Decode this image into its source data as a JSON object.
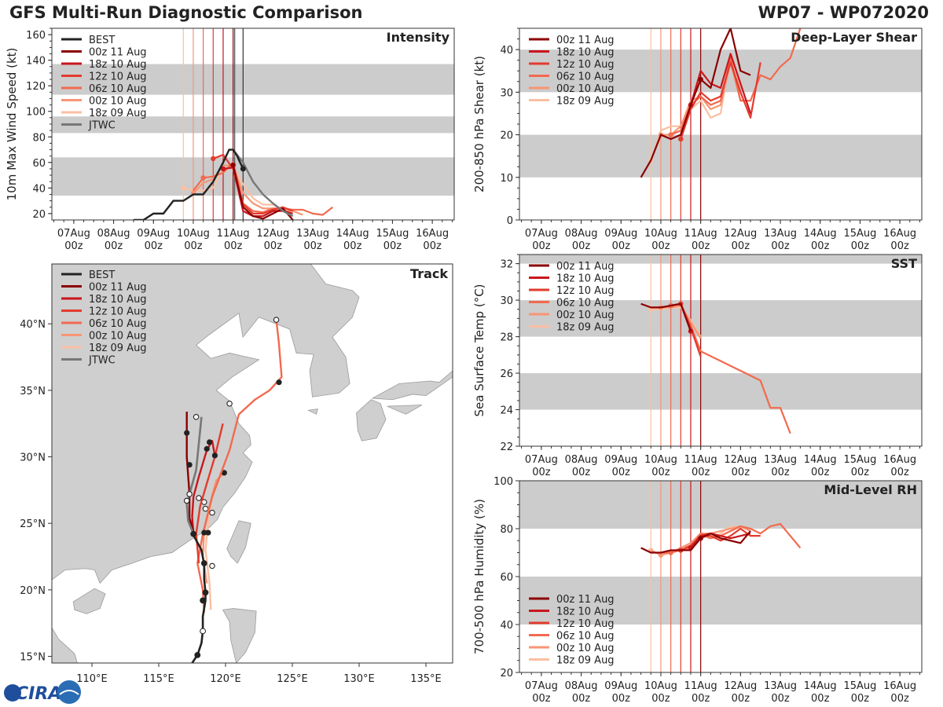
{
  "header": {
    "title": "GFS Multi-Run Diagnostic Comparison",
    "storm_id": "WP07 - WP072020"
  },
  "logo": {
    "text": "CIRA"
  },
  "colors": {
    "best": "#222222",
    "jtwc": "#777777",
    "band": "#cccccc",
    "runs": [
      "#8b0000",
      "#c8161d",
      "#e33b2e",
      "#f26a4f",
      "#f79574",
      "#fbbfa2"
    ]
  },
  "time_axis": {
    "ticks": [
      {
        "label": "07Aug",
        "sub": "00z"
      },
      {
        "label": "08Aug",
        "sub": "00z"
      },
      {
        "label": "09Aug",
        "sub": "00z"
      },
      {
        "label": "10Aug",
        "sub": "00z"
      },
      {
        "label": "11Aug",
        "sub": "00z"
      },
      {
        "label": "12Aug",
        "sub": "00z"
      },
      {
        "label": "13Aug",
        "sub": "00z"
      },
      {
        "label": "14Aug",
        "sub": "00z"
      },
      {
        "label": "15Aug",
        "sub": "00z"
      },
      {
        "label": "16Aug",
        "sub": "00z"
      }
    ]
  },
  "run_legend": [
    "00z 11 Aug",
    "18z 10 Aug",
    "12z 10 Aug",
    "06z 10 Aug",
    "00z 10 Aug",
    "18z 09 Aug"
  ],
  "best_label": "BEST",
  "jtwc_label": "JTWC",
  "chart_data": [
    {
      "id": "intensity",
      "type": "line",
      "title": "Intensity",
      "ylabel": "10m Max Wind Speed (kt)",
      "xlabel": "",
      "x_unit": "days since 07Aug 00z",
      "xlim": [
        -0.55,
        9.55
      ],
      "ylim": [
        15,
        165
      ],
      "yticks": [
        20,
        40,
        60,
        80,
        100,
        120,
        140,
        160
      ],
      "bands": [
        [
          34,
          64
        ],
        [
          83,
          96
        ],
        [
          113,
          137
        ]
      ],
      "run_inits": [
        4.0,
        3.75,
        3.5,
        3.25,
        3.0,
        2.75
      ],
      "best": {
        "name": "BEST",
        "x": [
          1.5,
          1.75,
          2.0,
          2.25,
          2.5,
          2.75,
          3.0,
          3.25,
          3.5,
          3.75,
          3.9,
          4.0,
          4.1,
          4.25
        ],
        "y": [
          15,
          15,
          20,
          20,
          30,
          30,
          35,
          35,
          45,
          60,
          70,
          70,
          65,
          55
        ],
        "markers": [
          4.25
        ]
      },
      "jtwc": {
        "name": "JTWC",
        "x": [
          4.0,
          4.25,
          4.5,
          4.75,
          5.0,
          5.25,
          5.5
        ],
        "y": [
          70,
          60,
          45,
          35,
          28,
          22,
          18
        ]
      },
      "series": [
        {
          "name": "00z 11 Aug",
          "x": [
            4.0,
            4.25,
            4.5,
            4.75,
            5.0,
            5.25,
            5.5
          ],
          "y": [
            58,
            25,
            18,
            16,
            20,
            24,
            15
          ]
        },
        {
          "name": "18z 10 Aug",
          "x": [
            3.75,
            4.0,
            4.25,
            4.5,
            4.75,
            5.0,
            5.25,
            5.5
          ],
          "y": [
            55,
            56,
            22,
            18,
            18,
            22,
            22,
            20
          ]
        },
        {
          "name": "12z 10 Aug",
          "x": [
            3.5,
            3.75,
            4.0,
            4.25,
            4.5,
            4.75,
            5.0,
            5.25,
            5.5
          ],
          "y": [
            63,
            66,
            55,
            27,
            20,
            20,
            23,
            25,
            22
          ]
        },
        {
          "name": "06z 10 Aug",
          "x": [
            3.0,
            3.25,
            3.5,
            3.75,
            4.0,
            4.25,
            4.5,
            4.75,
            5.0,
            5.25,
            5.5,
            5.75,
            6.0,
            6.25,
            6.5
          ],
          "y": [
            38,
            48,
            49,
            52,
            60,
            28,
            22,
            21,
            24,
            24,
            23,
            23,
            20,
            19,
            25
          ]
        },
        {
          "name": "00z 10 Aug",
          "x": [
            3.0,
            3.25,
            3.5,
            3.75,
            4.0,
            4.25,
            4.5,
            4.75,
            5.0,
            5.25,
            5.5,
            5.75
          ],
          "y": [
            36,
            44,
            47,
            58,
            57,
            36,
            28,
            24,
            24,
            22,
            22,
            19
          ]
        },
        {
          "name": "18z 09 Aug",
          "x": [
            2.75,
            3.0,
            3.25,
            3.5,
            3.75,
            4.0,
            4.25,
            4.5,
            4.75,
            5.0,
            5.25
          ],
          "y": [
            40,
            38,
            38,
            40,
            55,
            56,
            43,
            32,
            27,
            27,
            23
          ]
        }
      ],
      "annotations": [
        {
          "name": "early-marker",
          "x": 2.5,
          "y": 37
        }
      ]
    },
    {
      "id": "shear",
      "type": "line",
      "title": "Deep-Layer Shear",
      "ylabel": "200-850 hPa Shear (kt)",
      "xlabel": "",
      "xlim": [
        -0.55,
        9.55
      ],
      "ylim": [
        0,
        45
      ],
      "yticks": [
        0,
        10,
        20,
        30,
        40
      ],
      "bands": [
        [
          10,
          20
        ],
        [
          30,
          40
        ]
      ],
      "run_inits": [
        4.0,
        3.75,
        3.5,
        3.25,
        3.0,
        2.75
      ],
      "series": [
        {
          "name": "00z 11 Aug",
          "x": [
            2.5,
            2.75,
            3.0,
            3.25,
            3.5,
            3.75,
            4.0,
            4.25,
            4.5,
            4.75,
            5.0,
            5.25
          ],
          "y": [
            10,
            14,
            20,
            19,
            20,
            27,
            33,
            31,
            40,
            45,
            35,
            34
          ]
        },
        {
          "name": "18z 10 Aug",
          "x": [
            3.75,
            4.0,
            4.25,
            4.5,
            4.75,
            5.0,
            5.25
          ],
          "y": [
            27,
            35,
            32,
            31,
            39,
            32,
            25
          ]
        },
        {
          "name": "12z 10 Aug",
          "x": [
            3.5,
            3.75,
            4.0,
            4.25,
            4.5,
            4.75,
            5.0,
            5.25,
            5.5
          ],
          "y": [
            19,
            26,
            30,
            28,
            29,
            37,
            30,
            24,
            37
          ]
        },
        {
          "name": "06z 10 Aug",
          "x": [
            3.25,
            3.5,
            3.75,
            4.0,
            4.25,
            4.5,
            4.75,
            5.0,
            5.25,
            5.5,
            5.75,
            6.0,
            6.25,
            6.5
          ],
          "y": [
            20,
            21,
            27,
            29,
            27,
            28,
            38,
            28,
            28,
            34,
            33,
            36,
            38,
            45
          ]
        },
        {
          "name": "00z 10 Aug",
          "x": [
            3.0,
            3.25,
            3.5,
            3.75,
            4.0,
            4.25,
            4.5,
            4.75,
            5.0,
            5.25
          ],
          "y": [
            20,
            20,
            22,
            28,
            29,
            26,
            27,
            37,
            28,
            28
          ]
        },
        {
          "name": "18z 09 Aug",
          "x": [
            2.75,
            3.0,
            3.25,
            3.5,
            3.75,
            4.0,
            4.25,
            4.5,
            4.75,
            5.0
          ],
          "y": [
            14,
            21,
            22,
            22,
            26,
            28,
            24,
            25,
            39,
            31
          ]
        }
      ]
    },
    {
      "id": "sst",
      "type": "line",
      "title": "SST",
      "ylabel": "Sea Surface Temp (°C)",
      "xlabel": "",
      "xlim": [
        -0.55,
        9.55
      ],
      "ylim": [
        22,
        32.5
      ],
      "yticks": [
        22,
        24,
        26,
        28,
        30,
        32
      ],
      "bands": [
        [
          24,
          26
        ],
        [
          28,
          30
        ],
        [
          32,
          32.5
        ]
      ],
      "run_inits": [
        4.0,
        3.75,
        3.5,
        3.25,
        3.0,
        2.75
      ],
      "series": [
        {
          "name": "00z 11 Aug",
          "x": [
            2.5,
            2.75,
            3.0,
            3.25,
            3.5,
            3.75
          ],
          "y": [
            29.8,
            29.6,
            29.6,
            29.7,
            29.8,
            28.3
          ]
        },
        {
          "name": "18z 10 Aug",
          "x": [
            3.5,
            3.75
          ],
          "y": [
            29.8,
            28.3
          ]
        },
        {
          "name": "12z 10 Aug",
          "x": [
            3.25,
            3.5,
            3.75,
            4.0
          ],
          "y": [
            29.7,
            29.8,
            28.5,
            26.9
          ]
        },
        {
          "name": "06z 10 Aug",
          "x": [
            3.0,
            3.25,
            3.5,
            3.75,
            4.0,
            5.5,
            5.75,
            6.0,
            6.25
          ],
          "y": [
            29.6,
            29.7,
            29.8,
            28.6,
            27.2,
            25.6,
            24.1,
            24.1,
            22.7
          ]
        },
        {
          "name": "00z 10 Aug",
          "x": [
            2.75,
            3.0,
            3.25,
            3.5,
            3.75,
            4.0
          ],
          "y": [
            29.6,
            29.6,
            29.6,
            29.7,
            28.8,
            27.9
          ]
        },
        {
          "name": "18z 09 Aug",
          "x": [
            2.75,
            3.0,
            3.25,
            3.5,
            3.75,
            4.0
          ],
          "y": [
            29.5,
            29.5,
            29.6,
            29.6,
            28.9,
            28.0
          ]
        }
      ]
    },
    {
      "id": "rh",
      "type": "line",
      "title": "Mid-Level RH",
      "ylabel": "700-500 hPa Humidity (%)",
      "xlabel": "",
      "xlim": [
        -0.55,
        9.55
      ],
      "ylim": [
        20,
        100
      ],
      "yticks": [
        20,
        40,
        60,
        80,
        100
      ],
      "bands": [
        [
          40,
          60
        ],
        [
          80,
          100
        ]
      ],
      "run_inits": [
        4.0,
        3.75,
        3.5,
        3.25,
        3.0,
        2.75
      ],
      "series": [
        {
          "name": "00z 11 Aug",
          "x": [
            2.5,
            2.75,
            3.0,
            3.25,
            3.5,
            3.75,
            4.0,
            4.25,
            4.5,
            4.75,
            5.0,
            5.25
          ],
          "y": [
            72,
            70,
            70,
            71,
            71,
            71,
            76,
            78,
            76,
            75,
            74,
            79
          ]
        },
        {
          "name": "18z 10 Aug",
          "x": [
            3.75,
            4.0,
            4.25,
            4.5,
            4.75,
            5.0,
            5.25
          ],
          "y": [
            72,
            77,
            78,
            77,
            76,
            77,
            78
          ]
        },
        {
          "name": "12z 10 Aug",
          "x": [
            3.5,
            3.75,
            4.0,
            4.25,
            4.5,
            4.75,
            5.0,
            5.25,
            5.5
          ],
          "y": [
            71,
            73,
            77,
            77,
            75,
            77,
            80,
            77,
            77
          ]
        },
        {
          "name": "06z 10 Aug",
          "x": [
            3.0,
            3.25,
            3.5,
            3.75,
            4.0,
            4.25,
            4.5,
            4.75,
            5.0,
            5.25,
            5.5,
            5.75,
            6.0,
            6.25,
            6.5
          ],
          "y": [
            70,
            70,
            71,
            72,
            78,
            76,
            77,
            79,
            81,
            80,
            78,
            81,
            82,
            77,
            72
          ]
        },
        {
          "name": "00z 10 Aug",
          "x": [
            2.75,
            3.0,
            3.25,
            3.5,
            3.75,
            4.0,
            4.25,
            4.5,
            4.75,
            5.0,
            5.25
          ],
          "y": [
            71,
            69,
            70,
            72,
            74,
            78,
            78,
            79,
            80,
            81,
            79
          ]
        },
        {
          "name": "18z 09 Aug",
          "x": [
            2.75,
            3.0,
            3.25,
            3.5,
            3.75,
            4.0,
            4.25,
            4.5,
            4.75,
            5.0
          ],
          "y": [
            71,
            69,
            70,
            72,
            73,
            77,
            76,
            78,
            81,
            80
          ]
        }
      ]
    },
    {
      "id": "track",
      "type": "scatter",
      "title": "Track",
      "xlabel": "",
      "ylabel": "",
      "xlim": [
        107,
        137
      ],
      "ylim": [
        14.5,
        44.5
      ],
      "xticks": [
        110,
        115,
        120,
        125,
        130,
        135
      ],
      "xtick_labels": [
        "110°E",
        "115°E",
        "120°E",
        "125°E",
        "130°E",
        "135°E"
      ],
      "yticks": [
        15,
        20,
        25,
        30,
        35,
        40
      ],
      "ytick_labels": [
        "15°N",
        "20°N",
        "25°N",
        "30°N",
        "35°N",
        "40°N"
      ],
      "best": {
        "name": "BEST",
        "lon": [
          117.5,
          117.9,
          118.2,
          118.3,
          118.3,
          118.5,
          118.5,
          118.4,
          118.4,
          118.2,
          117.6,
          117.5
        ],
        "lat": [
          14.5,
          15.1,
          16.0,
          16.9,
          18.0,
          19.2,
          19.8,
          20.8,
          21.9,
          23.0,
          24.1,
          24.3
        ]
      },
      "jtwc": {
        "name": "JTWC",
        "lon": [
          117.6,
          117.2,
          117.1,
          117.3,
          117.8,
          118.0,
          118.2
        ],
        "lat": [
          24.2,
          25.2,
          26.5,
          27.2,
          29.0,
          31.0,
          33.0
        ]
      },
      "series": [
        {
          "name": "00z 11 Aug",
          "lon": [
            117.6,
            117.3,
            117.3,
            117.1,
            117.1,
            117.1
          ],
          "lat": [
            24.4,
            25.4,
            27.2,
            30.0,
            31.8,
            33.4
          ],
          "dots": [
            [
              117.3,
              29.4
            ],
            [
              117.1,
              31.8
            ]
          ]
        },
        {
          "name": "18z 10 Aug",
          "lon": [
            117.6,
            117.5,
            117.6,
            118.0,
            118.6,
            119.0,
            119.2
          ],
          "lat": [
            24.2,
            25.5,
            27.0,
            28.5,
            30.5,
            31.2,
            30.1
          ],
          "dots": [
            [
              118.6,
              30.6
            ],
            [
              119.2,
              30.1
            ],
            [
              118.8,
              31.1
            ]
          ]
        },
        {
          "name": "12z 10 Aug",
          "lon": [
            118.0,
            117.8,
            118.1,
            118.6,
            119.2,
            119.8
          ],
          "lat": [
            22.0,
            24.2,
            26.3,
            28.0,
            30.0,
            32.5
          ],
          "dots": [
            [
              118.4,
              24.3
            ],
            [
              118.7,
              24.3
            ]
          ]
        },
        {
          "name": "06z 10 Aug",
          "lon": [
            118.4,
            118.3,
            117.9,
            118.3,
            119.0,
            120.3,
            121.0,
            122.2,
            123.3,
            124.2,
            124.0,
            123.8
          ],
          "lat": [
            18.3,
            20.0,
            22.0,
            24.2,
            27.0,
            30.5,
            33.2,
            34.3,
            35.0,
            36.0,
            38.5,
            40.3
          ],
          "dots": [
            [
              124.0,
              35.6
            ]
          ],
          "open": [
            [
              120.3,
              34.0
            ],
            [
              123.8,
              40.3
            ]
          ]
        },
        {
          "name": "00z 10 Aug",
          "lon": [
            118.6,
            118.3,
            118.4,
            118.8,
            119.3,
            119.9
          ],
          "lat": [
            20.5,
            22.5,
            24.5,
            26.3,
            28.2,
            28.8
          ],
          "dots": [
            [
              119.9,
              28.8
            ]
          ],
          "open": [
            [
              119.0,
              25.8
            ],
            [
              119.0,
              21.8
            ]
          ]
        },
        {
          "name": "18z 09 Aug",
          "lon": [
            118.9,
            118.8,
            118.5,
            118.8,
            119.2
          ],
          "lat": [
            18.5,
            20.5,
            23.0,
            26.0,
            28.0
          ],
          "open": [
            [
              118.5,
              26.1
            ],
            [
              118.4,
              26.6
            ]
          ]
        }
      ]
    }
  ]
}
